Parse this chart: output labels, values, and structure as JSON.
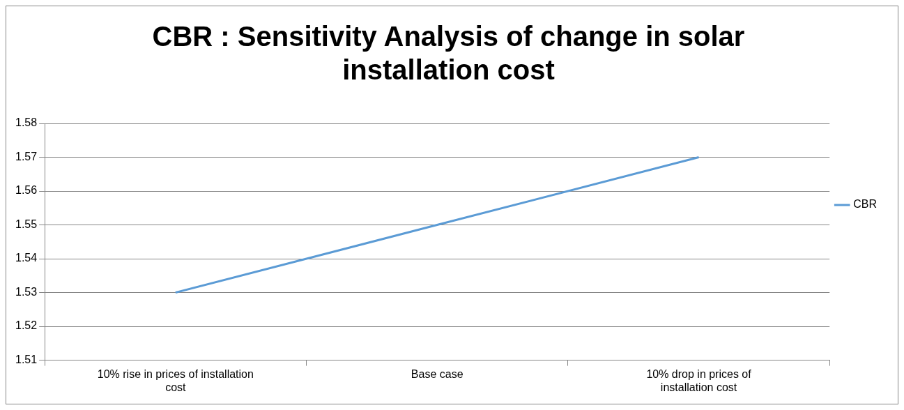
{
  "chart_data": {
    "type": "line",
    "title": "CBR : Sensitivity Analysis of change in solar installation cost",
    "categories": [
      "10% rise in prices of installation cost",
      "Base case",
      "10% drop in prices of installation cost"
    ],
    "series": [
      {
        "name": "CBR",
        "color": "#5b9bd5",
        "values": [
          1.53,
          1.55,
          1.57
        ]
      }
    ],
    "ylim": [
      1.51,
      1.58
    ],
    "yticks": [
      1.51,
      1.52,
      1.53,
      1.54,
      1.55,
      1.56,
      1.57,
      1.58
    ],
    "grid": "y",
    "legend": "right",
    "marker": "none"
  }
}
